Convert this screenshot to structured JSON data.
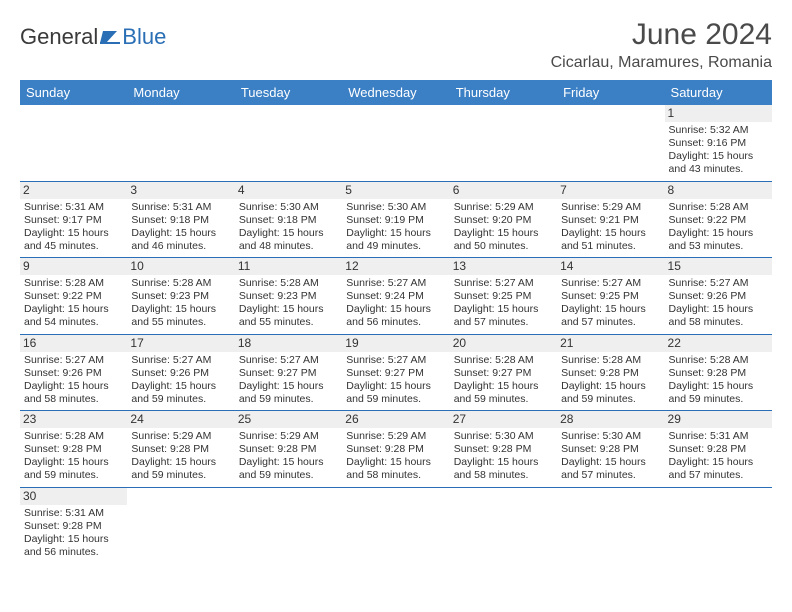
{
  "brand": {
    "part1": "General",
    "part2": "Blue"
  },
  "title": "June 2024",
  "location": "Cicarlau, Maramures, Romania",
  "colors": {
    "header_bg": "#3b7fc4",
    "header_text": "#ffffff",
    "row_border": "#2a6fb5",
    "brand_blue": "#2a6fb5",
    "text": "#333333",
    "daynum_bg": "#efefef",
    "page_bg": "#ffffff"
  },
  "day_headers": [
    "Sunday",
    "Monday",
    "Tuesday",
    "Wednesday",
    "Thursday",
    "Friday",
    "Saturday"
  ],
  "weeks": [
    [
      null,
      null,
      null,
      null,
      null,
      null,
      {
        "n": "1",
        "sr": "Sunrise: 5:32 AM",
        "ss": "Sunset: 9:16 PM",
        "dl": "Daylight: 15 hours and 43 minutes."
      }
    ],
    [
      {
        "n": "2",
        "sr": "Sunrise: 5:31 AM",
        "ss": "Sunset: 9:17 PM",
        "dl": "Daylight: 15 hours and 45 minutes."
      },
      {
        "n": "3",
        "sr": "Sunrise: 5:31 AM",
        "ss": "Sunset: 9:18 PM",
        "dl": "Daylight: 15 hours and 46 minutes."
      },
      {
        "n": "4",
        "sr": "Sunrise: 5:30 AM",
        "ss": "Sunset: 9:18 PM",
        "dl": "Daylight: 15 hours and 48 minutes."
      },
      {
        "n": "5",
        "sr": "Sunrise: 5:30 AM",
        "ss": "Sunset: 9:19 PM",
        "dl": "Daylight: 15 hours and 49 minutes."
      },
      {
        "n": "6",
        "sr": "Sunrise: 5:29 AM",
        "ss": "Sunset: 9:20 PM",
        "dl": "Daylight: 15 hours and 50 minutes."
      },
      {
        "n": "7",
        "sr": "Sunrise: 5:29 AM",
        "ss": "Sunset: 9:21 PM",
        "dl": "Daylight: 15 hours and 51 minutes."
      },
      {
        "n": "8",
        "sr": "Sunrise: 5:28 AM",
        "ss": "Sunset: 9:22 PM",
        "dl": "Daylight: 15 hours and 53 minutes."
      }
    ],
    [
      {
        "n": "9",
        "sr": "Sunrise: 5:28 AM",
        "ss": "Sunset: 9:22 PM",
        "dl": "Daylight: 15 hours and 54 minutes."
      },
      {
        "n": "10",
        "sr": "Sunrise: 5:28 AM",
        "ss": "Sunset: 9:23 PM",
        "dl": "Daylight: 15 hours and 55 minutes."
      },
      {
        "n": "11",
        "sr": "Sunrise: 5:28 AM",
        "ss": "Sunset: 9:23 PM",
        "dl": "Daylight: 15 hours and 55 minutes."
      },
      {
        "n": "12",
        "sr": "Sunrise: 5:27 AM",
        "ss": "Sunset: 9:24 PM",
        "dl": "Daylight: 15 hours and 56 minutes."
      },
      {
        "n": "13",
        "sr": "Sunrise: 5:27 AM",
        "ss": "Sunset: 9:25 PM",
        "dl": "Daylight: 15 hours and 57 minutes."
      },
      {
        "n": "14",
        "sr": "Sunrise: 5:27 AM",
        "ss": "Sunset: 9:25 PM",
        "dl": "Daylight: 15 hours and 57 minutes."
      },
      {
        "n": "15",
        "sr": "Sunrise: 5:27 AM",
        "ss": "Sunset: 9:26 PM",
        "dl": "Daylight: 15 hours and 58 minutes."
      }
    ],
    [
      {
        "n": "16",
        "sr": "Sunrise: 5:27 AM",
        "ss": "Sunset: 9:26 PM",
        "dl": "Daylight: 15 hours and 58 minutes."
      },
      {
        "n": "17",
        "sr": "Sunrise: 5:27 AM",
        "ss": "Sunset: 9:26 PM",
        "dl": "Daylight: 15 hours and 59 minutes."
      },
      {
        "n": "18",
        "sr": "Sunrise: 5:27 AM",
        "ss": "Sunset: 9:27 PM",
        "dl": "Daylight: 15 hours and 59 minutes."
      },
      {
        "n": "19",
        "sr": "Sunrise: 5:27 AM",
        "ss": "Sunset: 9:27 PM",
        "dl": "Daylight: 15 hours and 59 minutes."
      },
      {
        "n": "20",
        "sr": "Sunrise: 5:28 AM",
        "ss": "Sunset: 9:27 PM",
        "dl": "Daylight: 15 hours and 59 minutes."
      },
      {
        "n": "21",
        "sr": "Sunrise: 5:28 AM",
        "ss": "Sunset: 9:28 PM",
        "dl": "Daylight: 15 hours and 59 minutes."
      },
      {
        "n": "22",
        "sr": "Sunrise: 5:28 AM",
        "ss": "Sunset: 9:28 PM",
        "dl": "Daylight: 15 hours and 59 minutes."
      }
    ],
    [
      {
        "n": "23",
        "sr": "Sunrise: 5:28 AM",
        "ss": "Sunset: 9:28 PM",
        "dl": "Daylight: 15 hours and 59 minutes."
      },
      {
        "n": "24",
        "sr": "Sunrise: 5:29 AM",
        "ss": "Sunset: 9:28 PM",
        "dl": "Daylight: 15 hours and 59 minutes."
      },
      {
        "n": "25",
        "sr": "Sunrise: 5:29 AM",
        "ss": "Sunset: 9:28 PM",
        "dl": "Daylight: 15 hours and 59 minutes."
      },
      {
        "n": "26",
        "sr": "Sunrise: 5:29 AM",
        "ss": "Sunset: 9:28 PM",
        "dl": "Daylight: 15 hours and 58 minutes."
      },
      {
        "n": "27",
        "sr": "Sunrise: 5:30 AM",
        "ss": "Sunset: 9:28 PM",
        "dl": "Daylight: 15 hours and 58 minutes."
      },
      {
        "n": "28",
        "sr": "Sunrise: 5:30 AM",
        "ss": "Sunset: 9:28 PM",
        "dl": "Daylight: 15 hours and 57 minutes."
      },
      {
        "n": "29",
        "sr": "Sunrise: 5:31 AM",
        "ss": "Sunset: 9:28 PM",
        "dl": "Daylight: 15 hours and 57 minutes."
      }
    ],
    [
      {
        "n": "30",
        "sr": "Sunrise: 5:31 AM",
        "ss": "Sunset: 9:28 PM",
        "dl": "Daylight: 15 hours and 56 minutes."
      },
      null,
      null,
      null,
      null,
      null,
      null
    ]
  ]
}
